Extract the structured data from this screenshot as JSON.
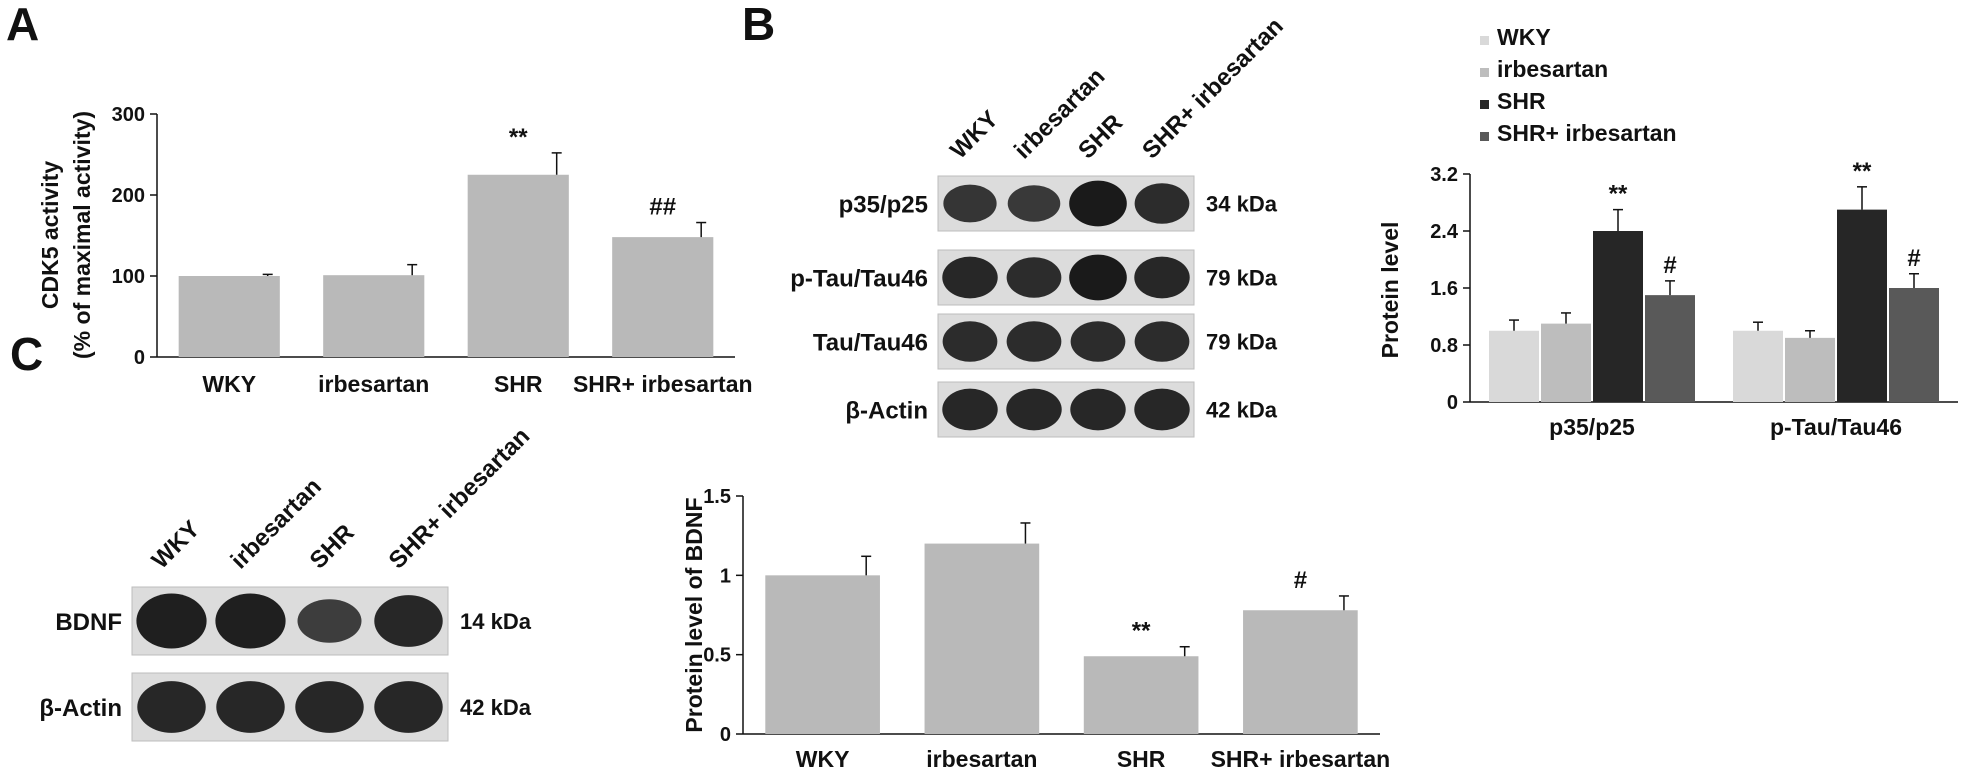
{
  "panels": {
    "a": "A",
    "b": "B",
    "c": "C"
  },
  "colors": {
    "gray_bar": "#b9b9b9",
    "wky": "#d9d9d9",
    "irbesartan": "#bdbdbd",
    "shr": "#262626",
    "shr_irbesartan": "#595959",
    "band": "#1a1a1a",
    "membrane": "#dcdcdc"
  },
  "blot_b": {
    "lanes": [
      "WKY",
      "irbesartan",
      "SHR",
      "SHR+ irbesartan"
    ],
    "rows": [
      {
        "label": "p35/p25",
        "kda": "34 kDa",
        "intensity": [
          0.7,
          0.65,
          1.0,
          0.8
        ]
      },
      {
        "label": "p-Tau/Tau46",
        "kda": "79 kDa",
        "intensity": [
          0.85,
          0.8,
          1.0,
          0.85
        ]
      },
      {
        "label": "Tau/Tau46",
        "kda": "79 kDa",
        "intensity": [
          0.8,
          0.8,
          0.8,
          0.8
        ]
      },
      {
        "label": "β-Actin",
        "kda": "42 kDa",
        "intensity": [
          0.85,
          0.85,
          0.85,
          0.85
        ]
      }
    ]
  },
  "blot_c": {
    "lanes": [
      "WKY",
      "irbesartan",
      "SHR",
      "SHR+ irbesartan"
    ],
    "rows": [
      {
        "label": "BDNF",
        "kda": "14 kDa",
        "intensity": [
          0.95,
          0.95,
          0.6,
          0.85
        ]
      },
      {
        "label": "β-Actin",
        "kda": "42 kDa",
        "intensity": [
          0.85,
          0.85,
          0.85,
          0.85
        ]
      }
    ]
  },
  "chart_data": [
    {
      "type": "bar",
      "panel": "A",
      "ylabel": "CDK5 activity",
      "ylabel2": "(% of maximal activity)",
      "categories": [
        "WKY",
        "irbesartan",
        "SHR",
        "SHR+ irbesartan"
      ],
      "values": [
        100,
        101,
        225,
        148
      ],
      "errors": [
        2,
        13,
        27,
        18
      ],
      "sig": [
        "",
        "",
        "**",
        "##"
      ],
      "ylim": [
        0,
        300
      ],
      "yticks": [
        "0",
        "100",
        "200",
        "300"
      ]
    },
    {
      "type": "bar",
      "panel": "B",
      "ylabel": "Protein level",
      "categories": [
        "p35/p25",
        "p-Tau/Tau46"
      ],
      "series": [
        {
          "name": "WKY",
          "values": [
            1.0,
            1.0
          ],
          "errors": [
            0.15,
            0.12
          ],
          "sig": [
            "",
            ""
          ]
        },
        {
          "name": "irbesartan",
          "values": [
            1.1,
            0.9
          ],
          "errors": [
            0.15,
            0.1
          ],
          "sig": [
            "",
            ""
          ]
        },
        {
          "name": "SHR",
          "values": [
            2.4,
            2.7
          ],
          "errors": [
            0.3,
            0.32
          ],
          "sig": [
            "**",
            "**"
          ]
        },
        {
          "name": "SHR+ irbesartan",
          "values": [
            1.5,
            1.6
          ],
          "errors": [
            0.2,
            0.2
          ],
          "sig": [
            "#",
            "#"
          ]
        }
      ],
      "ylim": [
        0,
        3.2
      ],
      "yticks": [
        "0",
        "0.8",
        "1.6",
        "2.4",
        "3.2"
      ],
      "legend_position": "top"
    },
    {
      "type": "bar",
      "panel": "C",
      "ylabel": "Protein level of BDNF",
      "categories": [
        "WKY",
        "irbesartan",
        "SHR",
        "SHR+ irbesartan"
      ],
      "values": [
        1.0,
        1.2,
        0.49,
        0.78
      ],
      "errors": [
        0.12,
        0.13,
        0.06,
        0.09
      ],
      "sig": [
        "",
        "",
        "**",
        "#"
      ],
      "ylim": [
        0,
        1.5
      ],
      "yticks": [
        "0",
        "0.5",
        "1",
        "1.5"
      ]
    }
  ]
}
